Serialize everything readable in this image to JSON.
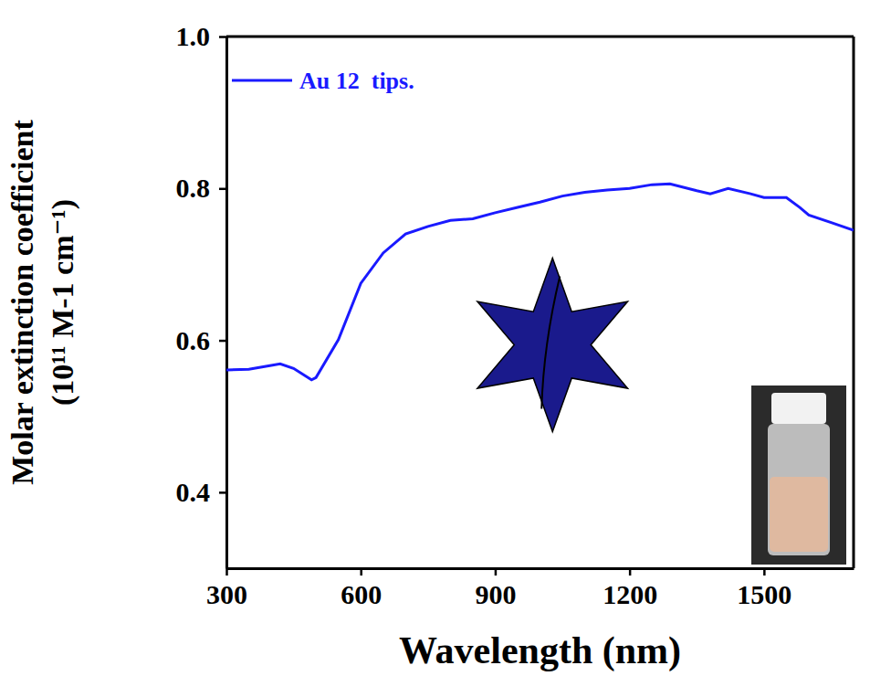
{
  "chart_data": {
    "type": "line",
    "ylabel": "Molar extinction coefficient (10¹¹ M-1 cm⁻¹)",
    "xlabel": "Wavelength (nm)",
    "x": [
      300,
      350,
      400,
      420,
      450,
      490,
      500,
      550,
      600,
      650,
      700,
      750,
      800,
      850,
      900,
      950,
      1000,
      1050,
      1100,
      1150,
      1200,
      1250,
      1290,
      1350,
      1380,
      1420,
      1470,
      1500,
      1550,
      1580,
      1600,
      1650,
      1700
    ],
    "series": [
      {
        "name": "Au 12  tips.",
        "color": "#1a1aff",
        "values": [
          0.561,
          0.562,
          0.567,
          0.569,
          0.563,
          0.548,
          0.551,
          0.601,
          0.675,
          0.715,
          0.74,
          0.75,
          0.758,
          0.76,
          0.768,
          0.775,
          0.782,
          0.79,
          0.795,
          0.798,
          0.8,
          0.805,
          0.806,
          0.797,
          0.793,
          0.8,
          0.793,
          0.788,
          0.788,
          0.775,
          0.765,
          0.755,
          0.745
        ]
      }
    ],
    "xlim": [
      300,
      1700
    ],
    "xticks": [
      300,
      600,
      900,
      1200,
      1500
    ],
    "ylim": [
      0.3,
      1.0
    ],
    "yticks": [
      0.4,
      0.6,
      0.8,
      {
        "value": 1.0,
        "label": "1.0"
      }
    ],
    "legend": "upper left",
    "grid": false
  }
}
